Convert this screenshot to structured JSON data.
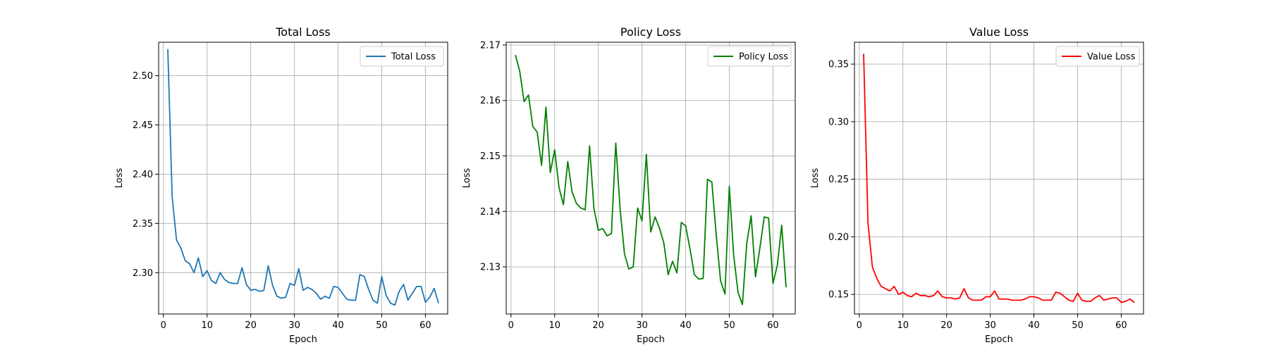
{
  "chart_data": [
    {
      "type": "line",
      "title": "Total Loss",
      "xlabel": "Epoch",
      "ylabel": "Loss",
      "xlim": [
        -1.1,
        65.1
      ],
      "ylim": [
        2.258,
        2.534
      ],
      "xticks": [
        0,
        10,
        20,
        30,
        40,
        50,
        60
      ],
      "yticks": [
        2.3,
        2.35,
        2.4,
        2.45,
        2.5
      ],
      "ytick_labels": [
        "2.30",
        "2.35",
        "2.40",
        "2.45",
        "2.50"
      ],
      "grid": true,
      "legend": "upper right",
      "series": [
        {
          "name": "Total Loss",
          "color": "#1f77b4",
          "x": [
            1,
            2,
            3,
            4,
            5,
            6,
            7,
            8,
            9,
            10,
            11,
            12,
            13,
            14,
            15,
            16,
            17,
            18,
            19,
            20,
            21,
            22,
            23,
            24,
            25,
            26,
            27,
            28,
            29,
            30,
            31,
            32,
            33,
            34,
            35,
            36,
            37,
            38,
            39,
            40,
            41,
            42,
            43,
            44,
            45,
            46,
            47,
            48,
            49,
            50,
            51,
            52,
            53,
            54,
            55,
            56,
            57,
            58,
            59,
            60,
            61,
            62,
            63
          ],
          "y": [
            2.527,
            2.377,
            2.333,
            2.325,
            2.312,
            2.309,
            2.3,
            2.315,
            2.296,
            2.302,
            2.292,
            2.289,
            2.3,
            2.293,
            2.29,
            2.289,
            2.289,
            2.305,
            2.288,
            2.282,
            2.283,
            2.281,
            2.282,
            2.307,
            2.287,
            2.276,
            2.274,
            2.275,
            2.289,
            2.287,
            2.304,
            2.282,
            2.285,
            2.283,
            2.279,
            2.273,
            2.276,
            2.274,
            2.286,
            2.285,
            2.279,
            2.273,
            2.272,
            2.272,
            2.298,
            2.296,
            2.283,
            2.272,
            2.269,
            2.296,
            2.277,
            2.269,
            2.267,
            2.281,
            2.288,
            2.272,
            2.279,
            2.286,
            2.286,
            2.27,
            2.275,
            2.284,
            2.269
          ]
        }
      ]
    },
    {
      "type": "line",
      "title": "Policy Loss",
      "xlabel": "Epoch",
      "ylabel": "Loss",
      "xlim": [
        -1.1,
        65.1
      ],
      "ylim": [
        2.1215,
        2.1705
      ],
      "xticks": [
        0,
        10,
        20,
        30,
        40,
        50,
        60
      ],
      "yticks": [
        2.13,
        2.14,
        2.15,
        2.16,
        2.17
      ],
      "ytick_labels": [
        "2.13",
        "2.14",
        "2.15",
        "2.16",
        "2.17"
      ],
      "grid": true,
      "legend": "upper right",
      "series": [
        {
          "name": "Policy Loss",
          "color": "#008000",
          "x": [
            1,
            2,
            3,
            4,
            5,
            6,
            7,
            8,
            9,
            10,
            11,
            12,
            13,
            14,
            15,
            16,
            17,
            18,
            19,
            20,
            21,
            22,
            23,
            24,
            25,
            26,
            27,
            28,
            29,
            30,
            31,
            32,
            33,
            34,
            35,
            36,
            37,
            38,
            39,
            40,
            41,
            42,
            43,
            44,
            45,
            46,
            47,
            48,
            49,
            50,
            51,
            52,
            53,
            54,
            55,
            56,
            57,
            58,
            59,
            60,
            61,
            62,
            63
          ],
          "y": [
            2.1682,
            2.1653,
            2.1598,
            2.161,
            2.1553,
            2.1543,
            2.1483,
            2.1588,
            2.147,
            2.1511,
            2.1443,
            2.1412,
            2.149,
            2.1435,
            2.1414,
            2.1406,
            2.1403,
            2.1518,
            2.1405,
            2.1366,
            2.1369,
            2.1356,
            2.136,
            2.1523,
            2.1403,
            2.1323,
            2.1296,
            2.13,
            2.1406,
            2.1383,
            2.1503,
            2.1363,
            2.139,
            2.137,
            2.1343,
            2.1286,
            2.131,
            2.1289,
            2.138,
            2.1374,
            2.1332,
            2.1286,
            2.1278,
            2.1279,
            2.1458,
            2.1453,
            2.1358,
            2.1275,
            2.1251,
            2.1445,
            2.1321,
            2.1254,
            2.1232,
            2.1343,
            2.1392,
            2.1282,
            2.1334,
            2.139,
            2.1388,
            2.127,
            2.1303,
            2.1375,
            2.1263
          ]
        }
      ]
    },
    {
      "type": "line",
      "title": "Value Loss",
      "xlabel": "Epoch",
      "ylabel": "Loss",
      "xlim": [
        -1.1,
        65.1
      ],
      "ylim": [
        0.133,
        0.369
      ],
      "xticks": [
        0,
        10,
        20,
        30,
        40,
        50,
        60
      ],
      "yticks": [
        0.15,
        0.2,
        0.25,
        0.3,
        0.35
      ],
      "ytick_labels": [
        "0.15",
        "0.20",
        "0.25",
        "0.30",
        "0.35"
      ],
      "grid": true,
      "legend": "upper right",
      "series": [
        {
          "name": "Value Loss",
          "color": "#ff0000",
          "x": [
            1,
            2,
            3,
            4,
            5,
            6,
            7,
            8,
            9,
            10,
            11,
            12,
            13,
            14,
            15,
            16,
            17,
            18,
            19,
            20,
            21,
            22,
            23,
            24,
            25,
            26,
            27,
            28,
            29,
            30,
            31,
            32,
            33,
            34,
            35,
            36,
            37,
            38,
            39,
            40,
            41,
            42,
            43,
            44,
            45,
            46,
            47,
            48,
            49,
            50,
            51,
            52,
            53,
            54,
            55,
            56,
            57,
            58,
            59,
            60,
            61,
            62,
            63
          ],
          "y": [
            0.359,
            0.212,
            0.174,
            0.164,
            0.157,
            0.155,
            0.153,
            0.157,
            0.15,
            0.152,
            0.149,
            0.148,
            0.151,
            0.149,
            0.149,
            0.148,
            0.149,
            0.153,
            0.148,
            0.147,
            0.147,
            0.146,
            0.147,
            0.155,
            0.147,
            0.145,
            0.145,
            0.145,
            0.148,
            0.148,
            0.153,
            0.146,
            0.146,
            0.146,
            0.145,
            0.145,
            0.145,
            0.146,
            0.148,
            0.148,
            0.147,
            0.145,
            0.145,
            0.145,
            0.152,
            0.151,
            0.148,
            0.145,
            0.144,
            0.151,
            0.145,
            0.144,
            0.144,
            0.147,
            0.149,
            0.145,
            0.146,
            0.147,
            0.147,
            0.143,
            0.144,
            0.146,
            0.143
          ]
        }
      ]
    }
  ]
}
